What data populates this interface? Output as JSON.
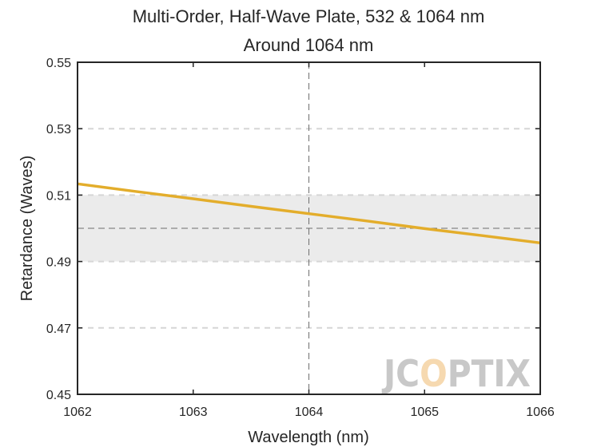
{
  "chart_data": {
    "type": "line",
    "title": "Multi-Order, Half-Wave Plate, 532 & 1064 nm",
    "subtitle": "Around 1064 nm",
    "xlabel": "Wavelength (nm)",
    "ylabel": "Retardance (Waves)",
    "xlim": [
      1062,
      1066
    ],
    "ylim": [
      0.45,
      0.55
    ],
    "x_ticks": [
      "1062",
      "1063",
      "1064",
      "1065",
      "1066"
    ],
    "y_ticks": [
      "0.45",
      "0.47",
      "0.49",
      "0.51",
      "0.53",
      "0.55"
    ],
    "grid": "horizontal-dashed",
    "tolerance_band": [
      0.49,
      0.51
    ],
    "target_retardance": 0.5,
    "center_wavelength": 1064,
    "series": [
      {
        "color": "#E3AD2B",
        "x": [
          1062,
          1062.5,
          1063,
          1063.5,
          1064,
          1064.5,
          1065,
          1065.5,
          1066
        ],
        "y": [
          0.5134,
          0.5111,
          0.5089,
          0.5066,
          0.5044,
          0.5022,
          0.4999,
          0.4978,
          0.4956
        ]
      }
    ],
    "colors": {
      "band": "#EBEBEB",
      "grid": "#D6D6D6",
      "reference": "#6E6E6E",
      "axis": "#262626"
    }
  },
  "watermark": {
    "text": "JCOPTIX",
    "color": "#C8C8C8",
    "accent_color": "#F6D9B0"
  }
}
